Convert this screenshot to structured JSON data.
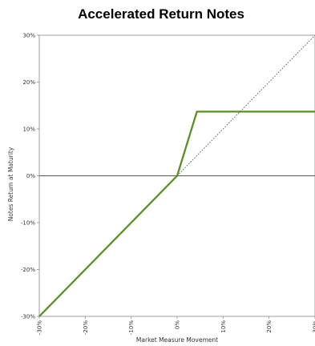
{
  "chart_data": {
    "type": "line",
    "title": "Accelerated Return Notes",
    "xlabel": "Market Measure Movement",
    "ylabel": "Notes Return at Maturity",
    "xlim": [
      -30,
      30
    ],
    "ylim": [
      -30,
      30
    ],
    "x_ticks": [
      "-30%",
      "-20%",
      "-10%",
      "0%",
      "10%",
      "20%",
      "30%"
    ],
    "y_ticks": [
      "30%",
      "20%",
      "10%",
      "0%",
      "-10%",
      "-20%",
      "-30%"
    ],
    "x_tick_values": [
      -30,
      -20,
      -10,
      0,
      10,
      20,
      30
    ],
    "y_tick_values": [
      30,
      20,
      10,
      0,
      -10,
      -20,
      -30
    ],
    "series": [
      {
        "style": "solid",
        "color": "#5a8f29",
        "x": [
          -30,
          0,
          4.3,
          30
        ],
        "y": [
          -30,
          0,
          13.7,
          13.7
        ]
      },
      {
        "style": "dotted",
        "color": "#555555",
        "x": [
          0,
          30
        ],
        "y": [
          0,
          30
        ]
      }
    ],
    "zero_line": true,
    "grid": false
  }
}
